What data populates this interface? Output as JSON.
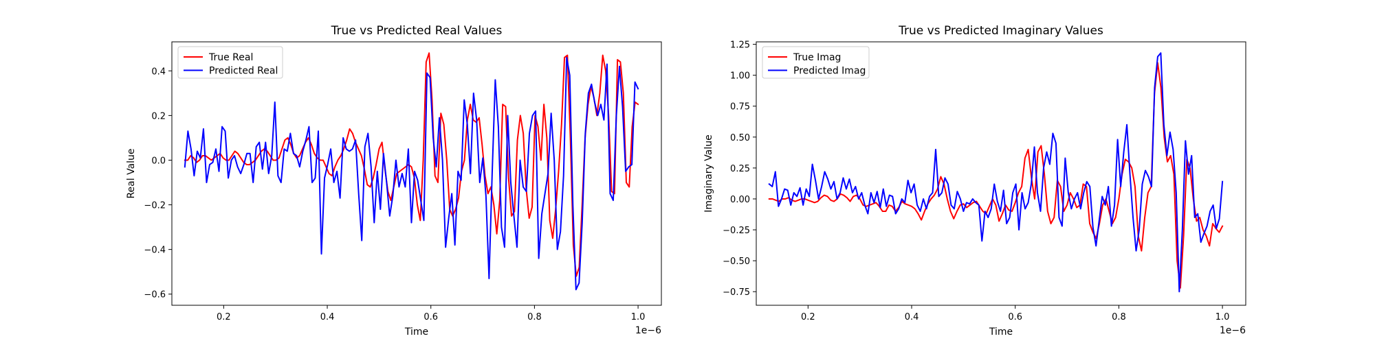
{
  "chart_data": [
    {
      "type": "line",
      "title": "True vs Predicted Real Values",
      "xlabel": "Time",
      "ylabel": "Real Value",
      "x_offset_label": "1e−6",
      "xlim": [
        0.1,
        1.045
      ],
      "ylim": [
        -0.65,
        0.53
      ],
      "xticks": [
        0.2,
        0.4,
        0.6,
        0.8,
        1.0
      ],
      "xtick_labels": [
        "0.2",
        "0.4",
        "0.6",
        "0.8",
        "1.0"
      ],
      "yticks": [
        -0.6,
        -0.4,
        -0.2,
        0.0,
        0.2,
        0.4
      ],
      "ytick_labels": [
        "−0.6",
        "−0.4",
        "−0.2",
        "0.0",
        "0.2",
        "0.4"
      ],
      "grid": false,
      "legend_position": "upper-left",
      "x_range": [
        0.125,
        1.0
      ],
      "series": [
        {
          "name": "True Real",
          "color": "#ff0000",
          "values": [
            0.0,
            0.0,
            0.02,
            0.01,
            -0.01,
            0.0,
            0.02,
            0.02,
            0.01,
            0.0,
            0.01,
            0.02,
            0.03,
            0.01,
            0.0,
            0.0,
            0.02,
            0.04,
            0.03,
            0.01,
            -0.01,
            -0.02,
            -0.02,
            -0.01,
            0.0,
            0.02,
            0.04,
            0.05,
            0.04,
            0.02,
            0.0,
            0.0,
            0.01,
            0.05,
            0.09,
            0.1,
            0.07,
            0.03,
            0.01,
            0.02,
            0.05,
            0.08,
            0.1,
            0.07,
            0.03,
            0.01,
            0.0,
            0.0,
            -0.03,
            -0.06,
            -0.07,
            -0.03,
            0.0,
            0.02,
            0.05,
            0.09,
            0.14,
            0.12,
            0.08,
            0.05,
            0.02,
            -0.04,
            -0.11,
            -0.12,
            -0.08,
            -0.02,
            0.05,
            0.08,
            -0.04,
            -0.14,
            -0.18,
            -0.12,
            -0.06,
            -0.05,
            -0.04,
            -0.03,
            -0.02,
            -0.03,
            -0.08,
            -0.2,
            -0.27,
            0.0,
            0.44,
            0.48,
            0.27,
            -0.07,
            -0.1,
            0.21,
            0.16,
            0.0,
            -0.22,
            -0.25,
            -0.22,
            -0.17,
            -0.05,
            0.0,
            0.18,
            0.25,
            0.18,
            0.17,
            0.19,
            0.07,
            -0.07,
            -0.15,
            -0.12,
            -0.2,
            -0.33,
            -0.18,
            0.25,
            0.24,
            -0.08,
            -0.25,
            -0.23,
            0.09,
            0.2,
            0.12,
            -0.13,
            -0.26,
            -0.21,
            0.2,
            0.15,
            0.0,
            0.25,
            0.1,
            -0.27,
            -0.35,
            -0.22,
            -0.05,
            0.16,
            0.46,
            0.47,
            0.1,
            -0.38,
            -0.52,
            -0.48,
            -0.2,
            0.1,
            0.25,
            0.33,
            0.28,
            0.2,
            0.3,
            0.47,
            0.4,
            0.2,
            -0.14,
            -0.15,
            0.45,
            0.44,
            0.3,
            -0.1,
            -0.12,
            0.15,
            0.26,
            0.25
          ]
        },
        {
          "name": "Predicted Real",
          "color": "#0000ff",
          "values": [
            -0.03,
            0.13,
            0.05,
            -0.07,
            0.04,
            0.01,
            0.14,
            -0.1,
            -0.02,
            -0.01,
            0.05,
            -0.05,
            0.15,
            0.13,
            -0.08,
            0.0,
            0.02,
            -0.03,
            -0.06,
            -0.02,
            0.03,
            0.03,
            -0.1,
            0.06,
            0.08,
            -0.04,
            0.08,
            -0.06,
            0.02,
            0.26,
            -0.07,
            -0.1,
            0.05,
            0.04,
            0.12,
            0.03,
            0.02,
            -0.03,
            0.04,
            0.09,
            0.15,
            -0.1,
            -0.08,
            0.13,
            -0.42,
            -0.08,
            -0.02,
            0.05,
            -0.1,
            -0.05,
            -0.17,
            0.1,
            0.05,
            0.04,
            0.05,
            0.09,
            -0.15,
            -0.36,
            0.06,
            0.12,
            -0.03,
            -0.28,
            -0.05,
            -0.22,
            0.03,
            -0.1,
            -0.25,
            -0.16,
            0.0,
            -0.12,
            -0.06,
            -0.12,
            0.05,
            -0.28,
            -0.05,
            -0.09,
            -0.18,
            -0.27,
            0.39,
            0.37,
            0.1,
            -0.03,
            0.19,
            0.0,
            -0.39,
            -0.26,
            -0.15,
            -0.38,
            -0.05,
            -0.09,
            0.27,
            0.16,
            -0.06,
            0.3,
            0.18,
            -0.1,
            0.01,
            -0.16,
            -0.53,
            -0.06,
            0.36,
            0.15,
            -0.3,
            -0.39,
            0.2,
            -0.1,
            -0.25,
            -0.39,
            0.0,
            -0.12,
            -0.14,
            0.12,
            0.2,
            0.22,
            -0.44,
            -0.24,
            -0.15,
            -0.06,
            0.21,
            0.0,
            -0.4,
            -0.32,
            -0.07,
            0.46,
            0.38,
            -0.2,
            -0.58,
            -0.55,
            -0.28,
            0.12,
            0.3,
            0.34,
            0.26,
            0.2,
            0.25,
            0.18,
            0.43,
            -0.15,
            -0.18,
            0.2,
            0.42,
            0.24,
            -0.05,
            -0.03,
            -0.02,
            0.35,
            0.32
          ]
        }
      ]
    },
    {
      "type": "line",
      "title": "True vs Predicted Imaginary Values",
      "xlabel": "Time",
      "ylabel": "Imaginary Value",
      "x_offset_label": "1e−6",
      "xlim": [
        0.1,
        1.045
      ],
      "ylim": [
        -0.86,
        1.27
      ],
      "xticks": [
        0.2,
        0.4,
        0.6,
        0.8,
        1.0
      ],
      "xtick_labels": [
        "0.2",
        "0.4",
        "0.6",
        "0.8",
        "1.0"
      ],
      "yticks": [
        -0.75,
        -0.5,
        -0.25,
        0.0,
        0.25,
        0.5,
        0.75,
        1.0,
        1.25
      ],
      "ytick_labels": [
        "−0.75",
        "−0.50",
        "−0.25",
        "0.00",
        "0.25",
        "0.50",
        "0.75",
        "1.00",
        "1.25"
      ],
      "grid": false,
      "legend_position": "upper-left",
      "x_range": [
        0.125,
        1.0
      ],
      "series": [
        {
          "name": "True Imag",
          "color": "#ff0000",
          "values": [
            0.0,
            0.0,
            -0.01,
            -0.02,
            0.0,
            0.0,
            0.01,
            -0.01,
            -0.02,
            -0.01,
            0.0,
            0.0,
            -0.01,
            -0.02,
            -0.03,
            -0.02,
            0.01,
            0.03,
            0.02,
            -0.01,
            -0.02,
            0.0,
            0.04,
            0.03,
            0.01,
            -0.02,
            0.02,
            0.03,
            0.0,
            -0.05,
            -0.06,
            -0.05,
            -0.04,
            -0.03,
            -0.06,
            -0.1,
            -0.1,
            -0.05,
            -0.06,
            -0.1,
            -0.07,
            -0.02,
            -0.04,
            -0.05,
            -0.06,
            -0.08,
            -0.12,
            -0.17,
            -0.1,
            -0.04,
            0.0,
            0.03,
            0.08,
            0.18,
            0.12,
            0.0,
            -0.1,
            -0.16,
            -0.1,
            -0.05,
            -0.04,
            -0.07,
            -0.05,
            -0.03,
            -0.02,
            -0.06,
            -0.1,
            -0.12,
            -0.06,
            0.0,
            -0.05,
            -0.18,
            -0.12,
            -0.05,
            -0.09,
            -0.1,
            -0.03,
            0.05,
            0.1,
            0.33,
            0.4,
            0.17,
            0.0,
            0.38,
            0.43,
            0.2,
            -0.1,
            -0.2,
            -0.15,
            0.15,
            0.1,
            -0.1,
            -0.05,
            0.05,
            0.0,
            -0.07,
            -0.05,
            0.12,
            0.1,
            -0.2,
            -0.27,
            -0.32,
            -0.2,
            -0.05,
            0.0,
            -0.1,
            -0.2,
            -0.15,
            0.0,
            0.2,
            0.32,
            0.3,
            0.25,
            0.1,
            -0.3,
            -0.42,
            -0.15,
            0.05,
            0.1,
            0.85,
            1.1,
            0.9,
            0.5,
            0.3,
            0.35,
            0.2,
            -0.5,
            -0.72,
            -0.3,
            0.32,
            0.25,
            0.0,
            -0.18,
            -0.15,
            -0.25,
            -0.3,
            -0.38,
            -0.2,
            -0.24,
            -0.27,
            -0.22
          ]
        },
        {
          "name": "Predicted Imag",
          "color": "#0000ff",
          "values": [
            0.12,
            0.1,
            0.22,
            -0.06,
            0.0,
            0.08,
            0.07,
            -0.05,
            0.05,
            0.02,
            0.09,
            -0.05,
            0.08,
            0.02,
            0.28,
            0.15,
            0.0,
            0.1,
            0.22,
            0.16,
            0.08,
            0.14,
            0.0,
            0.05,
            0.17,
            0.08,
            0.16,
            0.05,
            0.1,
            0.0,
            0.05,
            -0.05,
            -0.12,
            0.05,
            -0.03,
            0.06,
            -0.07,
            0.08,
            -0.06,
            0.03,
            0.02,
            -0.12,
            -0.08,
            0.0,
            -0.03,
            0.15,
            0.05,
            0.12,
            -0.05,
            -0.1,
            0.0,
            -0.08,
            0.02,
            0.05,
            0.4,
            0.02,
            0.05,
            0.17,
            0.12,
            -0.05,
            -0.08,
            0.06,
            0.0,
            -0.1,
            -0.03,
            -0.04,
            0.0,
            -0.03,
            -0.05,
            -0.34,
            -0.1,
            -0.15,
            -0.08,
            0.12,
            -0.02,
            -0.1,
            0.07,
            -0.2,
            -0.15,
            0.05,
            0.12,
            -0.25,
            0.05,
            -0.08,
            -0.03,
            0.12,
            0.42,
            0.05,
            -0.1,
            0.25,
            0.38,
            0.28,
            0.53,
            0.45,
            -0.15,
            -0.22,
            0.33,
            0.05,
            -0.08,
            0.0,
            0.05,
            -0.08,
            0.05,
            0.14,
            0.1,
            -0.23,
            -0.38,
            -0.18,
            0.02,
            -0.05,
            0.1,
            -0.22,
            -0.05,
            0.48,
            0.1,
            0.38,
            0.6,
            0.2,
            -0.15,
            -0.42,
            -0.25,
            0.12,
            0.23,
            0.18,
            0.1,
            0.9,
            1.15,
            1.18,
            0.6,
            0.35,
            0.54,
            0.4,
            0.05,
            -0.75,
            -0.25,
            0.47,
            0.2,
            0.35,
            -0.15,
            -0.12,
            -0.35,
            -0.28,
            -0.22,
            -0.1,
            -0.05,
            -0.24,
            -0.16,
            0.14
          ]
        }
      ]
    }
  ]
}
